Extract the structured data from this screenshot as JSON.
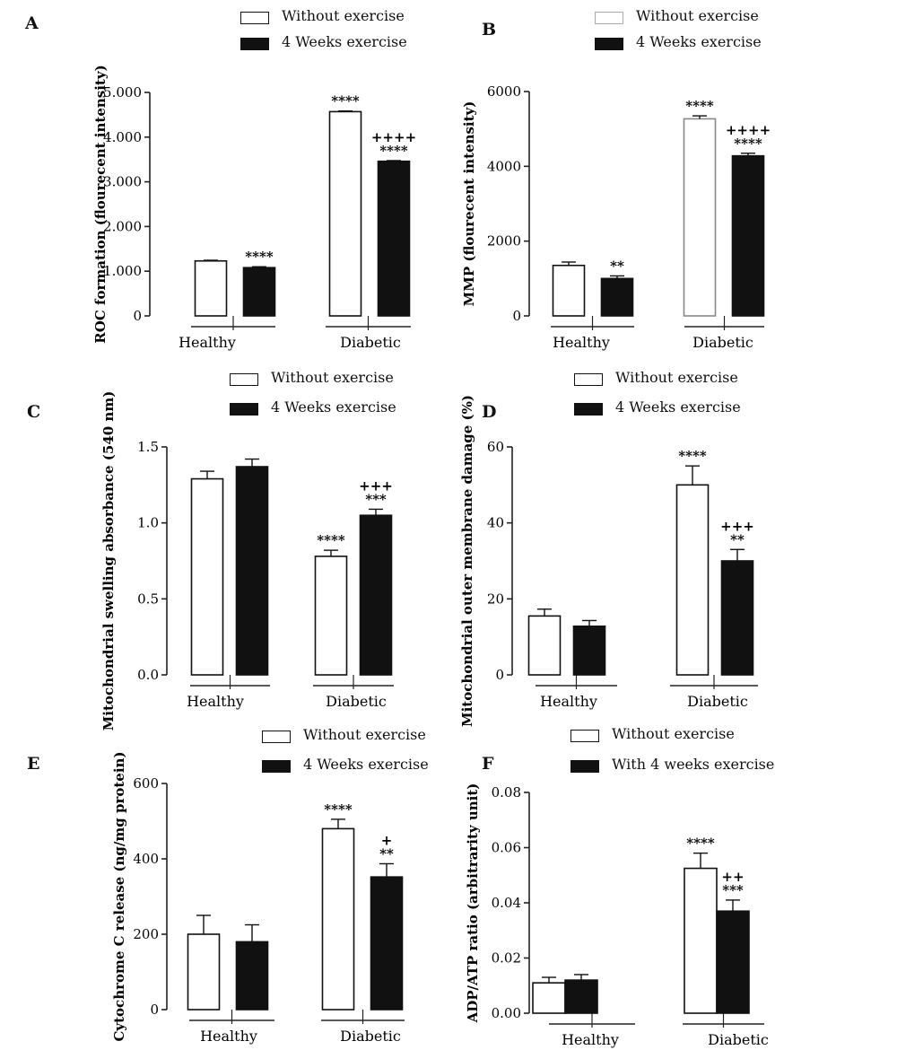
{
  "chart_data": [
    {
      "panel": "A",
      "type": "bar",
      "categories": [
        "Healthy",
        "Diabetic"
      ],
      "series": [
        {
          "name": "Without exercise",
          "values": [
            1230,
            4570
          ],
          "errors": [
            15,
            15
          ],
          "marks": [
            "",
            "****"
          ]
        },
        {
          "name": "4 Weeks exercise",
          "values": [
            1080,
            3460
          ],
          "errors": [
            20,
            15
          ],
          "marks": [
            "****",
            "****"
          ],
          "marks2": [
            "",
            "++++"
          ]
        }
      ],
      "ylabel": "ROC formation (flourecent intensity)",
      "ylim": [
        0,
        5000
      ],
      "yticks": [
        0,
        1000,
        2000,
        3000,
        4000,
        5000
      ],
      "ytick_labels": [
        "0",
        "1.000",
        "2.000",
        "3.000",
        "4.000",
        "5.000"
      ],
      "grid": false,
      "legend": "top"
    },
    {
      "panel": "B",
      "type": "bar",
      "categories": [
        "Healthy",
        "Diabetic"
      ],
      "series": [
        {
          "name": "Without exercise",
          "values": [
            1350,
            5270
          ],
          "errors": [
            90,
            80
          ],
          "marks": [
            "",
            "****"
          ]
        },
        {
          "name": "4 Weeks exercise",
          "values": [
            1000,
            4280
          ],
          "errors": [
            70,
            70
          ],
          "marks": [
            "**",
            "****"
          ],
          "marks2": [
            "",
            "++++"
          ]
        }
      ],
      "ylabel": "MMP (flourecent intensity)",
      "ylim": [
        0,
        6000
      ],
      "yticks": [
        0,
        2000,
        4000,
        6000
      ],
      "ytick_labels": [
        "0",
        "2000",
        "4000",
        "6000"
      ],
      "grid": false,
      "legend": "top"
    },
    {
      "panel": "C",
      "type": "bar",
      "categories": [
        "Healthy",
        "Diabetic"
      ],
      "series": [
        {
          "name": "Without exercise",
          "values": [
            1.29,
            0.78
          ],
          "errors": [
            0.05,
            0.04
          ],
          "marks": [
            "",
            "****"
          ]
        },
        {
          "name": "4 Weeks exercise",
          "values": [
            1.37,
            1.05
          ],
          "errors": [
            0.05,
            0.04
          ],
          "marks": [
            "",
            "***"
          ],
          "marks2": [
            "",
            "+++"
          ]
        }
      ],
      "ylabel": "Mitochondrial swelling absorbance (540 nm)",
      "ylim": [
        0,
        1.5
      ],
      "yticks": [
        0,
        0.5,
        1.0,
        1.5
      ],
      "ytick_labels": [
        "0.0",
        "0.5",
        "1.0",
        "1.5"
      ],
      "grid": false,
      "legend": "top"
    },
    {
      "panel": "D",
      "type": "bar",
      "categories": [
        "Healthy",
        "Diabetic"
      ],
      "series": [
        {
          "name": "Without exercise",
          "values": [
            15.5,
            50
          ],
          "errors": [
            1.8,
            5
          ],
          "marks": [
            "",
            "****"
          ]
        },
        {
          "name": "4 Weeks exercise",
          "values": [
            12.8,
            30
          ],
          "errors": [
            1.5,
            3
          ],
          "marks": [
            "",
            "**"
          ],
          "marks2": [
            "",
            "+++"
          ]
        }
      ],
      "ylabel": "Mitochondrial outer membrane damage (%)",
      "ylim": [
        0,
        60
      ],
      "yticks": [
        0,
        20,
        40,
        60
      ],
      "ytick_labels": [
        "0",
        "20",
        "40",
        "60"
      ],
      "grid": false,
      "legend": "top"
    },
    {
      "panel": "E",
      "type": "bar",
      "categories": [
        "Healthy",
        "Diabetic"
      ],
      "series": [
        {
          "name": "Without exercise",
          "values": [
            200,
            480
          ],
          "errors": [
            50,
            25
          ],
          "marks": [
            "",
            "****"
          ]
        },
        {
          "name": "4 Weeks exercise",
          "values": [
            180,
            352
          ],
          "errors": [
            45,
            35
          ],
          "marks": [
            "",
            "**"
          ],
          "marks2": [
            "",
            "+"
          ]
        }
      ],
      "ylabel": "Cytochrome C release (ng/mg protein)",
      "ylim": [
        0,
        600
      ],
      "yticks": [
        0,
        200,
        400,
        600
      ],
      "ytick_labels": [
        "0",
        "200",
        "400",
        "600"
      ],
      "grid": false,
      "legend": "top"
    },
    {
      "panel": "F",
      "type": "bar",
      "categories": [
        "Healthy",
        "Diabetic"
      ],
      "series": [
        {
          "name": "Without exercise",
          "values": [
            0.011,
            0.0525
          ],
          "errors": [
            0.002,
            0.0055
          ],
          "marks": [
            "",
            "****"
          ]
        },
        {
          "name": "With 4 weeks exercise",
          "values": [
            0.012,
            0.037
          ],
          "errors": [
            0.002,
            0.004
          ],
          "marks": [
            "",
            "***"
          ],
          "marks2": [
            "",
            "++"
          ]
        }
      ],
      "ylabel": "ADP/ATP ratio (arbitrarity unit)",
      "ylim": [
        0,
        0.08
      ],
      "yticks": [
        0,
        0.02,
        0.04,
        0.06,
        0.08
      ],
      "ytick_labels": [
        "0.00",
        "0.02",
        "0.04",
        "0.06",
        "0.08"
      ],
      "grid": false,
      "legend": "top"
    }
  ],
  "colors": {
    "without": "#ffffff",
    "with": "#111111",
    "axis": "#222222"
  }
}
